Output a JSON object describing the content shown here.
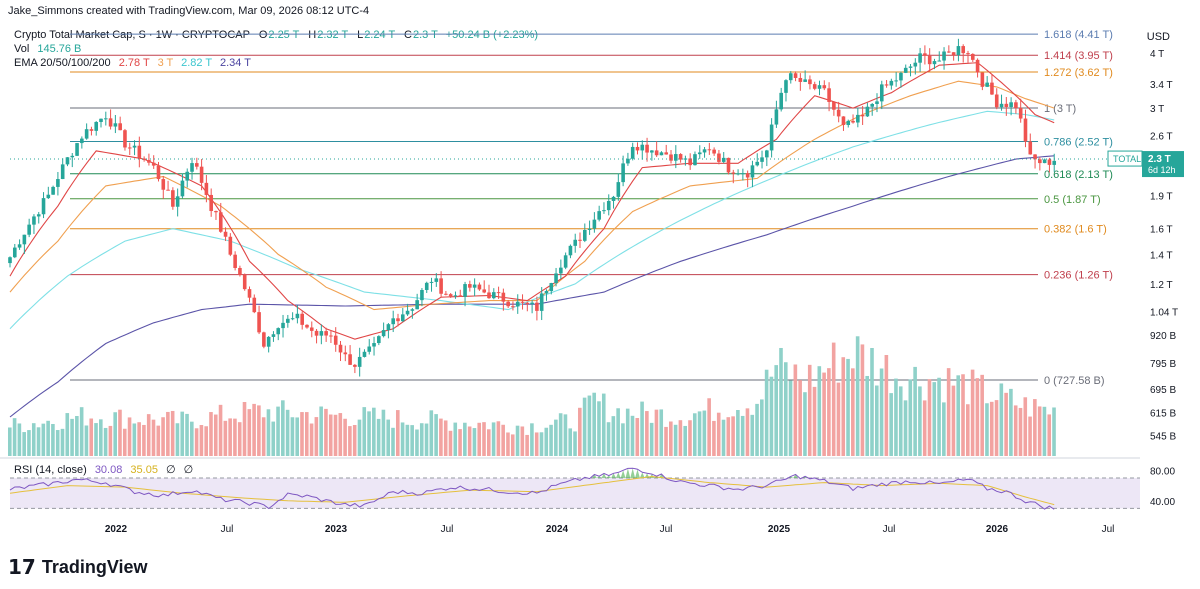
{
  "credit": "Jake_Simmons created with TradingView.com, Mar 09, 2026 08:12 UTC-4",
  "legend": {
    "title": "Crypto Total Market Cap, S · 1W · CRYPTOCAP",
    "o_label": "O",
    "o": "2.25 T",
    "h_label": "H",
    "h": "2.32 T",
    "l_label": "L",
    "l": "2.24 T",
    "c_label": "C",
    "c": "2.3 T",
    "change": "+50.24 B (+2.23%)",
    "vol_label": "Vol",
    "vol": "145.76 B",
    "ema_label": "EMA 20/50/100/200",
    "ema20": "2.78 T",
    "ema50": "3 T",
    "ema100": "2.82 T",
    "ema200": "2.34 T",
    "rsi_label": "RSI (14, close)",
    "rsi": "30.08",
    "rsi_ma": "35.05",
    "null1": "∅",
    "null2": "∅"
  },
  "currency": "USD",
  "colors": {
    "up": "#26a69a",
    "down": "#ef5350",
    "ema20": "#e04646",
    "ema50": "#f0a050",
    "ema100": "#7ee0e6",
    "ema200": "#5b54a8",
    "rsi": "#7e57c2",
    "rsi_ma": "#e5c03d",
    "text": "#131722"
  },
  "price_badge": {
    "label": "TOTAL",
    "value": "2.3 T",
    "countdown": "6d 12h"
  },
  "brand": {
    "logo": "17",
    "name": "TradingView"
  },
  "chart_data": {
    "type": "candlestick",
    "symbol": "Crypto Total Market Cap",
    "interval": "1W",
    "y_scale": "log",
    "ylim": [
      500000000000,
      5000000000000
    ],
    "y_ticks": [
      {
        "value": 4000000000000,
        "label": "4 T"
      },
      {
        "value": 3400000000000,
        "label": "3.4 T"
      },
      {
        "value": 3000000000000,
        "label": "3 T"
      },
      {
        "value": 2600000000000,
        "label": "2.6 T"
      },
      {
        "value": 1900000000000,
        "label": "1.9 T"
      },
      {
        "value": 1600000000000,
        "label": "1.6 T"
      },
      {
        "value": 1400000000000,
        "label": "1.4 T"
      },
      {
        "value": 1200000000000,
        "label": "1.2 T"
      },
      {
        "value": 1040000000000,
        "label": "1.04 T"
      },
      {
        "value": 920000000000,
        "label": "920 B"
      },
      {
        "value": 795000000000,
        "label": "795 B"
      },
      {
        "value": 695000000000,
        "label": "695 B"
      },
      {
        "value": 615000000000,
        "label": "615 B"
      },
      {
        "value": 545000000000,
        "label": "545 B"
      }
    ],
    "x_ticks": [
      "2022",
      "Jul",
      "2023",
      "Jul",
      "2024",
      "Jul",
      "2025",
      "Jul",
      "2026",
      "Jul"
    ],
    "fib_levels": [
      {
        "label": "1.618 (4.41 T)",
        "value": 4410000000000,
        "color": "#5b7cb0"
      },
      {
        "label": "1.414 (3.95 T)",
        "value": 3950000000000,
        "color": "#c0404d"
      },
      {
        "label": "1.272 (3.62 T)",
        "value": 3620000000000,
        "color": "#e08a1e"
      },
      {
        "label": "1 (3 T)",
        "value": 3000000000000,
        "color": "#6a6d78"
      },
      {
        "label": "0.786 (2.52 T)",
        "value": 2520000000000,
        "color": "#2e8fa0"
      },
      {
        "label": "0.618 (2.13 T)",
        "value": 2130000000000,
        "color": "#1f8a55"
      },
      {
        "label": "0.5 (1.87 T)",
        "value": 1870000000000,
        "color": "#4a9640"
      },
      {
        "label": "0.382 (1.6 T)",
        "value": 1600000000000,
        "color": "#e08a1e"
      },
      {
        "label": "0.236 (1.26 T)",
        "value": 1260000000000,
        "color": "#c0404d"
      },
      {
        "label": "0 (727.58 B)",
        "value": 727580000000,
        "color": "#6a6d78"
      }
    ],
    "anchors_price": [
      [
        0,
        1.38
      ],
      [
        8,
        1.9
      ],
      [
        15,
        2.6
      ],
      [
        20,
        2.9
      ],
      [
        24,
        2.5
      ],
      [
        30,
        2.2
      ],
      [
        34,
        1.8
      ],
      [
        38,
        2.3
      ],
      [
        42,
        1.8
      ],
      [
        46,
        1.4
      ],
      [
        50,
        1.1
      ],
      [
        53,
        0.88
      ],
      [
        56,
        0.98
      ],
      [
        60,
        1.0
      ],
      [
        64,
        0.92
      ],
      [
        67,
        0.92
      ],
      [
        70,
        0.82
      ],
      [
        72,
        0.79
      ],
      [
        76,
        0.86
      ],
      [
        80,
        1.0
      ],
      [
        84,
        1.07
      ],
      [
        88,
        1.23
      ],
      [
        92,
        1.12
      ],
      [
        96,
        1.18
      ],
      [
        100,
        1.14
      ],
      [
        106,
        1.08
      ],
      [
        110,
        1.06
      ],
      [
        114,
        1.3
      ],
      [
        118,
        1.48
      ],
      [
        122,
        1.7
      ],
      [
        126,
        1.92
      ],
      [
        130,
        2.5
      ],
      [
        134,
        2.42
      ],
      [
        138,
        2.35
      ],
      [
        142,
        2.25
      ],
      [
        146,
        2.45
      ],
      [
        150,
        2.2
      ],
      [
        154,
        2.15
      ],
      [
        158,
        2.4
      ],
      [
        162,
        3.55
      ],
      [
        166,
        3.4
      ],
      [
        170,
        3.25
      ],
      [
        174,
        2.7
      ],
      [
        178,
        2.85
      ],
      [
        182,
        3.3
      ],
      [
        186,
        3.55
      ],
      [
        190,
        3.9
      ],
      [
        194,
        3.85
      ],
      [
        198,
        4.1
      ],
      [
        200,
        4.05
      ],
      [
        203,
        3.45
      ],
      [
        206,
        3.1
      ],
      [
        210,
        3.05
      ],
      [
        213,
        2.3
      ],
      [
        216,
        2.25
      ],
      [
        218,
        2.3
      ]
    ],
    "anchors_ema20": [
      [
        0,
        1.25
      ],
      [
        10,
        1.8
      ],
      [
        18,
        2.4
      ],
      [
        28,
        2.3
      ],
      [
        40,
        2.0
      ],
      [
        50,
        1.35
      ],
      [
        58,
        1.1
      ],
      [
        66,
        0.95
      ],
      [
        72,
        0.9
      ],
      [
        80,
        0.95
      ],
      [
        90,
        1.12
      ],
      [
        100,
        1.13
      ],
      [
        108,
        1.1
      ],
      [
        116,
        1.25
      ],
      [
        124,
        1.6
      ],
      [
        132,
        2.2
      ],
      [
        142,
        2.25
      ],
      [
        152,
        2.25
      ],
      [
        160,
        2.55
      ],
      [
        168,
        3.2
      ],
      [
        176,
        3.0
      ],
      [
        184,
        3.25
      ],
      [
        194,
        3.75
      ],
      [
        202,
        3.8
      ],
      [
        208,
        3.35
      ],
      [
        214,
        2.9
      ],
      [
        218,
        2.78
      ]
    ],
    "anchors_ema50": [
      [
        0,
        1.15
      ],
      [
        10,
        1.5
      ],
      [
        20,
        2.0
      ],
      [
        32,
        2.1
      ],
      [
        44,
        1.8
      ],
      [
        56,
        1.4
      ],
      [
        66,
        1.18
      ],
      [
        76,
        1.05
      ],
      [
        88,
        1.08
      ],
      [
        100,
        1.1
      ],
      [
        110,
        1.1
      ],
      [
        120,
        1.35
      ],
      [
        130,
        1.75
      ],
      [
        142,
        2.0
      ],
      [
        156,
        2.08
      ],
      [
        168,
        2.55
      ],
      [
        178,
        2.9
      ],
      [
        188,
        3.2
      ],
      [
        198,
        3.45
      ],
      [
        206,
        3.35
      ],
      [
        212,
        3.15
      ],
      [
        218,
        3.0
      ]
    ],
    "anchors_ema100": [
      [
        0,
        0.95
      ],
      [
        12,
        1.25
      ],
      [
        24,
        1.5
      ],
      [
        34,
        1.6
      ],
      [
        46,
        1.5
      ],
      [
        60,
        1.3
      ],
      [
        74,
        1.15
      ],
      [
        90,
        1.1
      ],
      [
        104,
        1.05
      ],
      [
        118,
        1.2
      ],
      [
        132,
        1.5
      ],
      [
        146,
        1.8
      ],
      [
        160,
        2.1
      ],
      [
        176,
        2.45
      ],
      [
        192,
        2.75
      ],
      [
        204,
        2.95
      ],
      [
        212,
        2.9
      ],
      [
        218,
        2.82
      ]
    ],
    "anchors_ema200": [
      [
        0,
        0.6
      ],
      [
        10,
        0.72
      ],
      [
        20,
        0.88
      ],
      [
        30,
        0.98
      ],
      [
        40,
        1.05
      ],
      [
        50,
        1.08
      ],
      [
        70,
        1.07
      ],
      [
        90,
        1.08
      ],
      [
        110,
        1.08
      ],
      [
        124,
        1.15
      ],
      [
        140,
        1.35
      ],
      [
        158,
        1.55
      ],
      [
        176,
        1.8
      ],
      [
        196,
        2.1
      ],
      [
        210,
        2.3
      ],
      [
        218,
        2.34
      ]
    ],
    "anchors_rsi": [
      [
        0,
        55
      ],
      [
        8,
        62
      ],
      [
        14,
        68
      ],
      [
        20,
        64
      ],
      [
        26,
        52
      ],
      [
        32,
        47
      ],
      [
        38,
        54
      ],
      [
        44,
        42
      ],
      [
        50,
        37
      ],
      [
        54,
        32
      ],
      [
        58,
        48
      ],
      [
        62,
        46
      ],
      [
        66,
        40
      ],
      [
        70,
        35
      ],
      [
        74,
        33
      ],
      [
        80,
        52
      ],
      [
        86,
        50
      ],
      [
        92,
        58
      ],
      [
        98,
        56
      ],
      [
        104,
        52
      ],
      [
        110,
        50
      ],
      [
        114,
        60
      ],
      [
        120,
        70
      ],
      [
        126,
        75
      ],
      [
        130,
        83
      ],
      [
        134,
        77
      ],
      [
        140,
        65
      ],
      [
        146,
        60
      ],
      [
        152,
        55
      ],
      [
        158,
        60
      ],
      [
        164,
        73
      ],
      [
        170,
        66
      ],
      [
        176,
        56
      ],
      [
        182,
        62
      ],
      [
        188,
        66
      ],
      [
        194,
        62
      ],
      [
        200,
        68
      ],
      [
        204,
        56
      ],
      [
        208,
        52
      ],
      [
        212,
        40
      ],
      [
        216,
        32
      ],
      [
        218,
        30
      ]
    ],
    "anchors_rsi_ma": [
      [
        0,
        50
      ],
      [
        12,
        60
      ],
      [
        24,
        58
      ],
      [
        36,
        50
      ],
      [
        48,
        44
      ],
      [
        58,
        40
      ],
      [
        70,
        38
      ],
      [
        82,
        46
      ],
      [
        96,
        54
      ],
      [
        110,
        52
      ],
      [
        122,
        62
      ],
      [
        134,
        72
      ],
      [
        146,
        64
      ],
      [
        158,
        58
      ],
      [
        170,
        64
      ],
      [
        182,
        60
      ],
      [
        194,
        63
      ],
      [
        204,
        60
      ],
      [
        212,
        45
      ],
      [
        218,
        35
      ]
    ],
    "rsi_ylim": [
      20,
      95
    ],
    "rsi_ticks": [
      {
        "value": 80,
        "label": "80.00"
      },
      {
        "value": 40,
        "label": "40.00"
      }
    ],
    "rsi_bands": [
      70,
      30
    ],
    "volume_profile": [
      [
        0,
        6
      ],
      [
        16,
        8
      ],
      [
        36,
        7
      ],
      [
        52,
        9
      ],
      [
        70,
        8
      ],
      [
        90,
        7
      ],
      [
        108,
        6
      ],
      [
        118,
        7
      ],
      [
        122,
        11
      ],
      [
        126,
        9
      ],
      [
        140,
        8
      ],
      [
        156,
        11
      ],
      [
        160,
        18
      ],
      [
        166,
        15
      ],
      [
        176,
        21
      ],
      [
        186,
        16
      ],
      [
        196,
        15
      ],
      [
        206,
        12
      ],
      [
        212,
        10
      ],
      [
        218,
        9
      ]
    ]
  }
}
